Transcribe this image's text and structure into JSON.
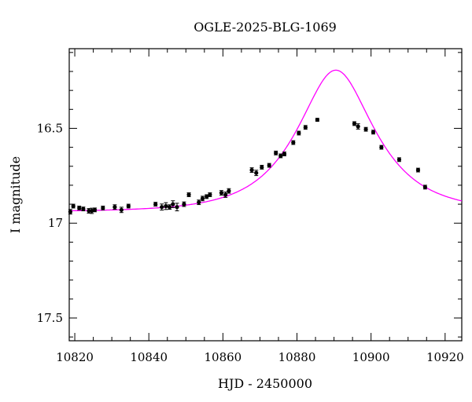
{
  "chart_data": {
    "type": "scatter",
    "title": "OGLE-2025-BLG-1069",
    "xlabel": "HJD - 2450000",
    "ylabel": "I magnitude",
    "xlim": [
      10818.5,
      10924.5
    ],
    "ylim": [
      17.62,
      16.08
    ],
    "y_inverted": true,
    "grid": false,
    "x_major_ticks": [
      10820,
      10840,
      10860,
      10880,
      10900,
      10920
    ],
    "x_tick_labels": [
      "10820",
      "10840",
      "10860",
      "10880",
      "10900",
      "10920"
    ],
    "y_major_ticks": [
      16.5,
      17.0,
      17.5
    ],
    "y_tick_labels": [
      "16.5",
      "17",
      "17.5"
    ],
    "model_color": "#ff00ff",
    "point_color": "#000000",
    "model": {
      "baseline_mag": 16.94,
      "t0": 10890.5,
      "tE": 17.0,
      "u0": 0.56
    },
    "series": [
      {
        "x": [
          10818.8,
          10819.6,
          10821.2,
          10822.3,
          10823.8,
          10824.6,
          10825.4,
          10827.6,
          10830.8,
          10832.6,
          10834.5,
          10841.8,
          10843.5,
          10844.6,
          10845.6,
          10846.5,
          10847.6,
          10849.5,
          10850.8,
          10853.5,
          10854.5,
          10855.6,
          10856.5,
          10859.6,
          10860.7,
          10861.6,
          10867.8,
          10869.0,
          10870.5,
          10872.5,
          10874.3,
          10875.6,
          10876.6,
          10879.0,
          10880.5,
          10882.3,
          10885.5,
          10895.5,
          10896.5,
          10898.6,
          10900.6,
          10902.8,
          10907.6,
          10912.7,
          10914.6
        ],
        "y": [
          16.94,
          16.91,
          16.92,
          16.925,
          16.935,
          16.935,
          16.93,
          16.92,
          16.915,
          16.93,
          16.91,
          16.9,
          16.915,
          16.91,
          16.915,
          16.9,
          16.915,
          16.9,
          16.85,
          16.89,
          16.87,
          16.86,
          16.85,
          16.84,
          16.85,
          16.83,
          16.72,
          16.735,
          16.705,
          16.695,
          16.63,
          16.645,
          16.635,
          16.575,
          16.525,
          16.495,
          16.455,
          16.475,
          16.49,
          16.505,
          16.52,
          16.6,
          16.665,
          16.72,
          16.81
        ],
        "err": [
          0.012,
          0.01,
          0.01,
          0.01,
          0.012,
          0.014,
          0.01,
          0.01,
          0.012,
          0.014,
          0.01,
          0.01,
          0.016,
          0.018,
          0.012,
          0.018,
          0.02,
          0.012,
          0.01,
          0.012,
          0.012,
          0.01,
          0.01,
          0.012,
          0.014,
          0.012,
          0.012,
          0.014,
          0.01,
          0.01,
          0.01,
          0.01,
          0.01,
          0.01,
          0.01,
          0.01,
          0.008,
          0.01,
          0.014,
          0.01,
          0.01,
          0.01,
          0.01,
          0.01,
          0.01
        ]
      }
    ]
  }
}
